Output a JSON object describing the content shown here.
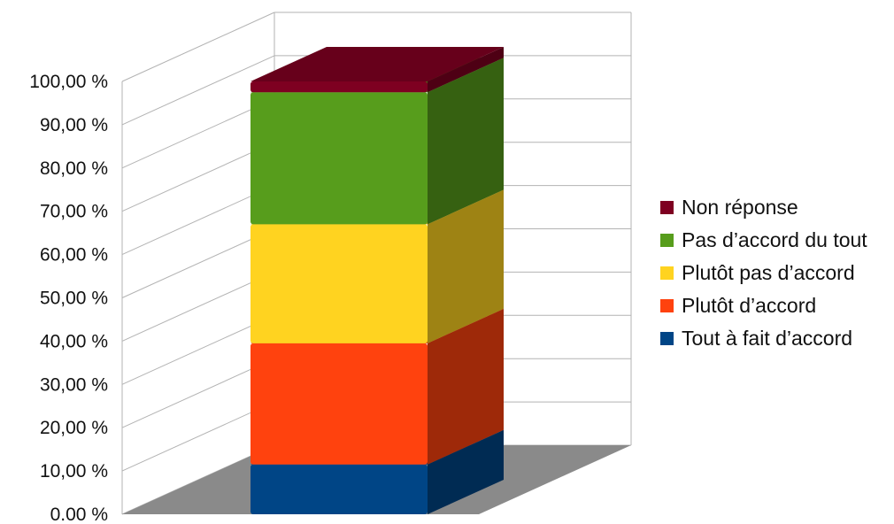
{
  "chart_data": {
    "type": "bar",
    "stacked": true,
    "three_d": true,
    "categories": [
      ""
    ],
    "y_ticks": [
      "0.00 %",
      "10,00 %",
      "20,00 %",
      "30,00 %",
      "40,00 %",
      "50,00 %",
      "60,00 %",
      "70,00 %",
      "80,00 %",
      "90,00 %",
      "100,00 %"
    ],
    "ylim": [
      0,
      100
    ],
    "grid": true,
    "legend_position": "right",
    "series": [
      {
        "name": "Tout à fait d’accord",
        "color": "#004586",
        "values": [
          11.5
        ]
      },
      {
        "name": "Plutôt d’accord",
        "color": "#ff420e",
        "values": [
          28
        ]
      },
      {
        "name": "Plutôt pas d’accord",
        "color": "#ffd320",
        "values": [
          27.5
        ]
      },
      {
        "name": "Pas d’accord du tout",
        "color": "#579d1c",
        "values": [
          30.5
        ]
      },
      {
        "name": "Non réponse",
        "color": "#7e0021",
        "values": [
          2.5
        ]
      }
    ],
    "legend_order": [
      4,
      3,
      2,
      1,
      0
    ]
  }
}
